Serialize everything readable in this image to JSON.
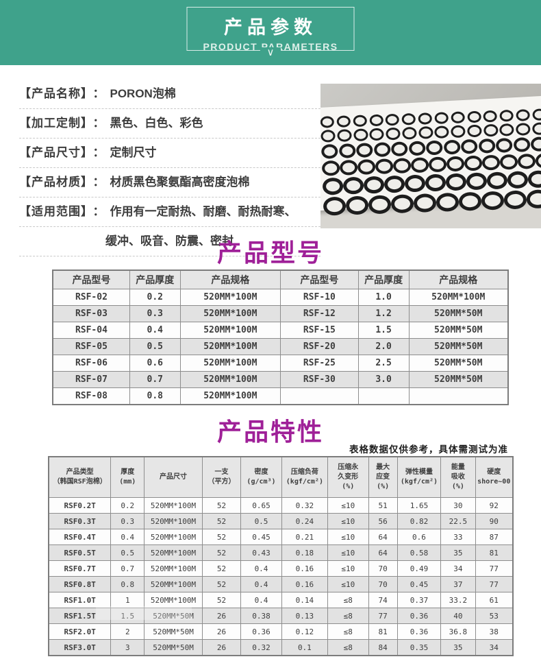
{
  "colors": {
    "banner_green": "#3fa28b",
    "heading_magenta": "#9f2098",
    "table_alt_row": "#e2e2e2",
    "table_border": "#8d8d8d"
  },
  "banner": {
    "title": "产品参数",
    "subtitle": "PRODUCT PARAMETERS",
    "chevron": "∨"
  },
  "info": {
    "colon": "：",
    "rows": [
      {
        "label": "【产品名称】",
        "value": "PORON泡棉"
      },
      {
        "label": "【加工定制】",
        "value": "黑色、白色、彩色"
      },
      {
        "label": "【产品尺寸】",
        "value": "定制尺寸"
      },
      {
        "label": "【产品材质】",
        "value": "材质黑色聚氨酯高密度泡棉"
      },
      {
        "label": "【适用范围】",
        "value": "作用有一定耐热、耐磨、耐热耐寒、"
      }
    ],
    "range_line2": "缓冲、吸音、防震、密封"
  },
  "photo": {
    "name": "black-foam-rings-photo",
    "ring_rows": [
      {
        "count": 14,
        "w": 14,
        "h": 11,
        "b": 3
      },
      {
        "count": 14,
        "w": 15,
        "h": 12,
        "b": 3
      },
      {
        "count": 13,
        "w": 16,
        "h": 13,
        "b": 4
      },
      {
        "count": 13,
        "w": 18,
        "h": 14,
        "b": 4
      },
      {
        "count": 12,
        "w": 20,
        "h": 15,
        "b": 5
      },
      {
        "count": 11,
        "w": 23,
        "h": 17,
        "b": 5
      }
    ]
  },
  "model_section": {
    "heading": "产品型号",
    "table": {
      "headers": [
        "产品型号",
        "产品厚度",
        "产品规格",
        "产品型号",
        "产品厚度",
        "产品规格"
      ],
      "col_widths": [
        "16.9%",
        "11.1%",
        "22.0%",
        "17.1%",
        "11.1%",
        "21.8%"
      ],
      "rows": [
        [
          "RSF-02",
          "0.2",
          "520MM*100M",
          "RSF-10",
          "1.0",
          "520MM*100M"
        ],
        [
          "RSF-03",
          "0.3",
          "520MM*100M",
          "RSF-12",
          "1.2",
          "520MM*50M"
        ],
        [
          "RSF-04",
          "0.4",
          "520MM*100M",
          "RSF-15",
          "1.5",
          "520MM*50M"
        ],
        [
          "RSF-05",
          "0.5",
          "520MM*100M",
          "RSF-20",
          "2.0",
          "520MM*50M"
        ],
        [
          "RSF-06",
          "0.6",
          "520MM*100M",
          "RSF-25",
          "2.5",
          "520MM*50M"
        ],
        [
          "RSF-07",
          "0.7",
          "520MM*100M",
          "RSF-30",
          "3.0",
          "520MM*50M"
        ],
        [
          "RSF-08",
          "0.8",
          "520MM*100M",
          "",
          "",
          ""
        ]
      ]
    }
  },
  "features_section": {
    "heading": "产品特性",
    "note": "表格数据仅供参考，具体需测试为准",
    "table": {
      "headers": [
        [
          "产品类型",
          "（韩国RSF泡棉）"
        ],
        [
          "厚度",
          "(mm)"
        ],
        [
          "产品尺寸"
        ],
        [
          "一支",
          "（平方）"
        ],
        [
          "密度",
          "(g/cm³)"
        ],
        [
          "压缩负荷",
          "(kgf/cm²)"
        ],
        [
          "压缩永",
          "久变形",
          "(%)"
        ],
        [
          "最大",
          "应变",
          "(%)"
        ],
        [
          "弹性模量",
          "(kgf/cm²)"
        ],
        [
          "能量",
          "吸收",
          "(%)"
        ],
        [
          "硬度",
          "shore~00"
        ]
      ],
      "col_widths": [
        "13.4%",
        "7.2%",
        "12.5%",
        "8.3%",
        "8.8%",
        "9.9%",
        "8.8%",
        "6.2%",
        "9.4%",
        "7.4%",
        "8.1%"
      ],
      "rows": [
        [
          "RSF0.2T",
          "0.2",
          "520MM*100M",
          "52",
          "0.65",
          "0.32",
          "≤10",
          "51",
          "1.65",
          "30",
          "92"
        ],
        [
          "RSF0.3T",
          "0.3",
          "520MM*100M",
          "52",
          "0.5",
          "0.24",
          "≤10",
          "56",
          "0.82",
          "22.5",
          "90"
        ],
        [
          "RSF0.4T",
          "0.4",
          "520MM*100M",
          "52",
          "0.45",
          "0.21",
          "≤10",
          "64",
          "0.6",
          "33",
          "87"
        ],
        [
          "RSF0.5T",
          "0.5",
          "520MM*100M",
          "52",
          "0.43",
          "0.18",
          "≤10",
          "64",
          "0.58",
          "35",
          "81"
        ],
        [
          "RSF0.7T",
          "0.7",
          "520MM*100M",
          "52",
          "0.4",
          "0.16",
          "≤10",
          "70",
          "0.49",
          "34",
          "77"
        ],
        [
          "RSF0.8T",
          "0.8",
          "520MM*100M",
          "52",
          "0.4",
          "0.16",
          "≤10",
          "70",
          "0.45",
          "37",
          "77"
        ],
        [
          "RSF1.0T",
          "1",
          "520MM*100M",
          "52",
          "0.4",
          "0.14",
          "≤8",
          "74",
          "0.37",
          "33.2",
          "61"
        ],
        [
          "RSF1.5T",
          "1.5",
          "520MM*50M",
          "26",
          "0.38",
          "0.13",
          "≤8",
          "77",
          "0.36",
          "40",
          "53"
        ],
        [
          "RSF2.0T",
          "2",
          "520MM*50M",
          "26",
          "0.36",
          "0.12",
          "≤8",
          "81",
          "0.36",
          "36.8",
          "38"
        ],
        [
          "RSF3.0T",
          "3",
          "520MM*50M",
          "26",
          "0.32",
          "0.1",
          "≤8",
          "84",
          "0.35",
          "35",
          "34"
        ]
      ]
    }
  }
}
